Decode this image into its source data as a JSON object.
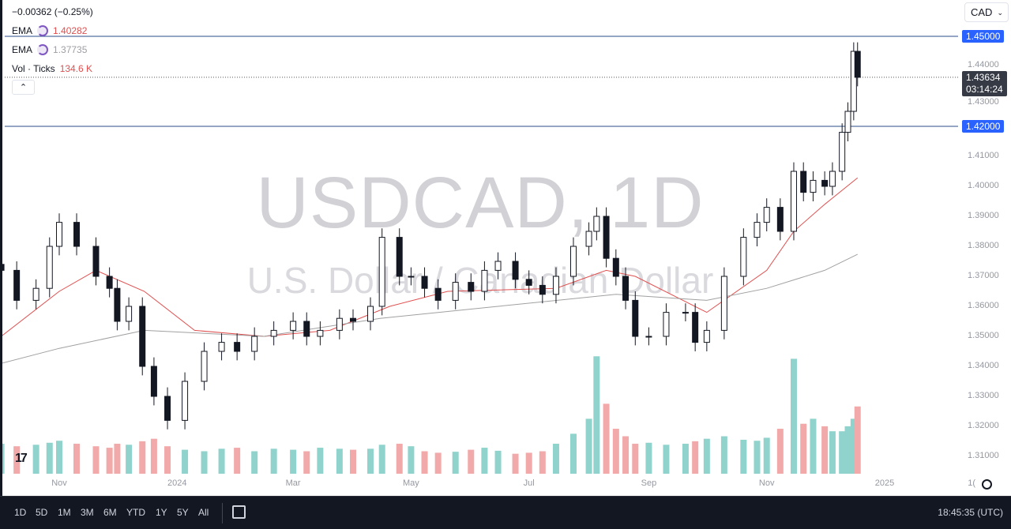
{
  "header": {
    "change": "−0.00362 (−0.25%)",
    "currency": "CAD"
  },
  "legend": [
    {
      "name": "EMA",
      "value": "1.40282",
      "color": "#e57373"
    },
    {
      "name": "EMA",
      "value": "1.37735",
      "color": "#9e9ea4"
    },
    {
      "name": "Vol · Ticks",
      "value": "134.6 K",
      "color": "#e57373"
    }
  ],
  "watermark": {
    "symbol": "USDCAD, 1D",
    "description": "U.S. Dollar / Canadian Dollar"
  },
  "price_axis": {
    "ticks": [
      "1.44000",
      "1.43000",
      "1.41000",
      "1.40000",
      "1.39000",
      "1.38000",
      "1.37000",
      "1.36000",
      "1.35000",
      "1.34000",
      "1.33000",
      "1.32000",
      "1.31000"
    ],
    "lines": [
      {
        "label": "1.45000",
        "price": 1.45
      },
      {
        "label": "1.42000",
        "price": 1.42
      }
    ],
    "current": {
      "price": "1.43634",
      "countdown": "03:14:24"
    }
  },
  "time_axis": {
    "ticks": [
      [
        "Nov",
        "2023-11-01"
      ],
      [
        "2024",
        "2024-01-01"
      ],
      [
        "Mar",
        "2024-03-01"
      ],
      [
        "May",
        "2024-05-01"
      ],
      [
        "Jul",
        "2024-07-01"
      ],
      [
        "Sep",
        "2024-09-01"
      ],
      [
        "Nov",
        "2024-11-01"
      ],
      [
        "2025",
        "2025-01-01"
      ],
      [
        "1(",
        "2025-02-15"
      ]
    ]
  },
  "bottom_bar": {
    "ranges": [
      "1D",
      "5D",
      "1M",
      "3M",
      "6M",
      "YTD",
      "1Y",
      "5Y",
      "All"
    ],
    "clock": "18:45:35 (UTC)"
  },
  "colors": {
    "up": "#ffffff",
    "down": "#131722",
    "ema_fast": "#e05050",
    "ema_slow": "#a0a0a0",
    "vol_up": "#8fd3cc",
    "vol_down": "#f1a9a9",
    "line": "#2a4e8a"
  },
  "chart_data": {
    "type": "candlestick",
    "symbol": "USDCAD",
    "interval": "1D",
    "ylim": [
      1.3,
      1.455
    ],
    "candles": [
      [
        "2023-10-02",
        1.372
      ],
      [
        "2023-10-10",
        1.362
      ],
      [
        "2023-10-20",
        1.366
      ],
      [
        "2023-10-27",
        1.38
      ],
      [
        "2023-11-01",
        1.388
      ],
      [
        "2023-11-10",
        1.38
      ],
      [
        "2023-11-20",
        1.37
      ],
      [
        "2023-11-27",
        1.366
      ],
      [
        "2023-12-01",
        1.355
      ],
      [
        "2023-12-07",
        1.36
      ],
      [
        "2023-12-14",
        1.34
      ],
      [
        "2023-12-20",
        1.33
      ],
      [
        "2023-12-27",
        1.322
      ],
      [
        "2024-01-05",
        1.335
      ],
      [
        "2024-01-15",
        1.345
      ],
      [
        "2024-01-24",
        1.348
      ],
      [
        "2024-02-01",
        1.345
      ],
      [
        "2024-02-10",
        1.35
      ],
      [
        "2024-02-20",
        1.352
      ],
      [
        "2024-03-01",
        1.355
      ],
      [
        "2024-03-08",
        1.35
      ],
      [
        "2024-03-15",
        1.352
      ],
      [
        "2024-03-25",
        1.356
      ],
      [
        "2024-04-01",
        1.355
      ],
      [
        "2024-04-10",
        1.36
      ],
      [
        "2024-04-16",
        1.383
      ],
      [
        "2024-04-25",
        1.37
      ],
      [
        "2024-05-01",
        1.37
      ],
      [
        "2024-05-08",
        1.366
      ],
      [
        "2024-05-15",
        1.362
      ],
      [
        "2024-05-24",
        1.368
      ],
      [
        "2024-06-01",
        1.365
      ],
      [
        "2024-06-08",
        1.372
      ],
      [
        "2024-06-15",
        1.375
      ],
      [
        "2024-06-24",
        1.369
      ],
      [
        "2024-07-01",
        1.367
      ],
      [
        "2024-07-08",
        1.364
      ],
      [
        "2024-07-15",
        1.37
      ],
      [
        "2024-07-24",
        1.38
      ],
      [
        "2024-08-01",
        1.385
      ],
      [
        "2024-08-05",
        1.39
      ],
      [
        "2024-08-10",
        1.376
      ],
      [
        "2024-08-15",
        1.37
      ],
      [
        "2024-08-20",
        1.362
      ],
      [
        "2024-08-25",
        1.35
      ],
      [
        "2024-09-01",
        1.35
      ],
      [
        "2024-09-10",
        1.358
      ],
      [
        "2024-09-20",
        1.358
      ],
      [
        "2024-09-25",
        1.348
      ],
      [
        "2024-10-01",
        1.352
      ],
      [
        "2024-10-10",
        1.37
      ],
      [
        "2024-10-20",
        1.383
      ],
      [
        "2024-10-27",
        1.388
      ],
      [
        "2024-11-01",
        1.393
      ],
      [
        "2024-11-08",
        1.385
      ],
      [
        "2024-11-15",
        1.405
      ],
      [
        "2024-11-20",
        1.398
      ],
      [
        "2024-11-25",
        1.402
      ],
      [
        "2024-12-01",
        1.4
      ],
      [
        "2024-12-05",
        1.405
      ],
      [
        "2024-12-10",
        1.418
      ],
      [
        "2024-12-13",
        1.425
      ],
      [
        "2024-12-16",
        1.445
      ],
      [
        "2024-12-18",
        1.43634
      ]
    ],
    "ema_fast": [
      [
        "2023-10-02",
        1.35
      ],
      [
        "2023-11-01",
        1.365
      ],
      [
        "2023-11-20",
        1.372
      ],
      [
        "2023-12-15",
        1.365
      ],
      [
        "2024-01-10",
        1.352
      ],
      [
        "2024-02-15",
        1.35
      ],
      [
        "2024-03-20",
        1.352
      ],
      [
        "2024-04-20",
        1.36
      ],
      [
        "2024-05-20",
        1.365
      ],
      [
        "2024-07-15",
        1.366
      ],
      [
        "2024-08-10",
        1.372
      ],
      [
        "2024-08-25",
        1.37
      ],
      [
        "2024-10-01",
        1.358
      ],
      [
        "2024-11-01",
        1.372
      ],
      [
        "2024-11-15",
        1.385
      ],
      [
        "2024-12-01",
        1.394
      ],
      [
        "2024-12-18",
        1.40282
      ]
    ],
    "ema_slow": [
      [
        "2023-10-02",
        1.341
      ],
      [
        "2023-11-01",
        1.346
      ],
      [
        "2023-12-15",
        1.352
      ],
      [
        "2024-02-15",
        1.35
      ],
      [
        "2024-04-15",
        1.356
      ],
      [
        "2024-06-15",
        1.36
      ],
      [
        "2024-08-15",
        1.364
      ],
      [
        "2024-10-01",
        1.362
      ],
      [
        "2024-11-01",
        1.366
      ],
      [
        "2024-12-01",
        1.372
      ],
      [
        "2024-12-18",
        1.37735
      ]
    ],
    "volume_k": [
      60,
      55,
      58,
      62,
      66,
      60,
      55,
      52,
      60,
      58,
      65,
      70,
      55,
      48,
      45,
      50,
      52,
      45,
      50,
      48,
      45,
      52,
      50,
      48,
      50,
      58,
      60,
      55,
      45,
      42,
      44,
      48,
      52,
      46,
      40,
      42,
      45,
      60,
      80,
      110,
      235,
      140,
      90,
      75,
      60,
      62,
      58,
      60,
      65,
      70,
      75,
      68,
      66,
      72,
      90,
      230,
      100,
      110,
      95,
      85,
      85,
      95,
      110,
      134.6
    ]
  }
}
